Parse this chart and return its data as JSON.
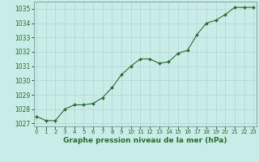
{
  "x": [
    0,
    1,
    2,
    3,
    4,
    5,
    6,
    7,
    8,
    9,
    10,
    11,
    12,
    13,
    14,
    15,
    16,
    17,
    18,
    19,
    20,
    21,
    22,
    23
  ],
  "y": [
    1027.5,
    1027.2,
    1027.2,
    1028.0,
    1028.3,
    1028.3,
    1028.4,
    1028.8,
    1029.5,
    1030.4,
    1031.0,
    1031.5,
    1031.5,
    1031.2,
    1031.3,
    1031.9,
    1032.1,
    1033.2,
    1034.0,
    1034.2,
    1034.6,
    1035.1,
    1035.1,
    1035.1
  ],
  "line_color": "#2d6a2d",
  "marker": "D",
  "marker_size": 2.0,
  "bg_color": "#c8ece8",
  "grid_color": "#b0cfc8",
  "axis_line_color": "#7a9a90",
  "xlabel": "Graphe pression niveau de la mer (hPa)",
  "xlabel_color": "#2d6a2d",
  "xlabel_fontsize": 6.5,
  "tick_color": "#2d6a2d",
  "ytick_fontsize": 5.5,
  "xtick_fontsize": 5.0,
  "ylim": [
    1026.8,
    1035.5
  ],
  "yticks": [
    1027,
    1028,
    1029,
    1030,
    1031,
    1032,
    1033,
    1034,
    1035
  ],
  "xlim": [
    -0.3,
    23.3
  ],
  "xticks": [
    0,
    1,
    2,
    3,
    4,
    5,
    6,
    7,
    8,
    9,
    10,
    11,
    12,
    13,
    14,
    15,
    16,
    17,
    18,
    19,
    20,
    21,
    22,
    23
  ]
}
